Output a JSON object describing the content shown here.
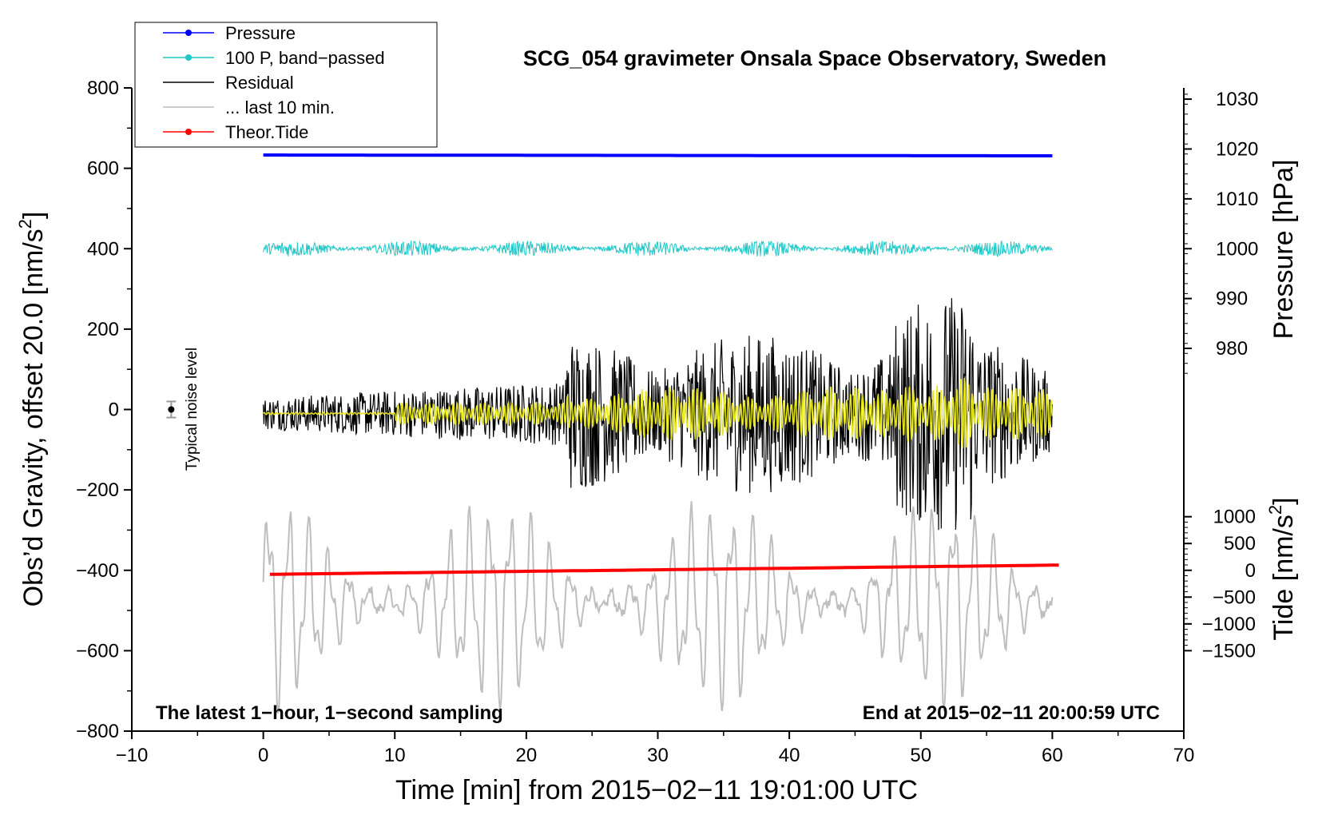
{
  "chart_data": {
    "type": "line",
    "title": "SCG_054 gravimeter Onsala Space Observatory, Sweden",
    "xlabel": "Time [min] from 2015−02−11 19:01:00 UTC",
    "ylabel_left": "Obs’d Gravity, offset 20.0 [nm/s",
    "ylabel_left_sup": "2",
    "ylabel_left_close": "]",
    "ylabel_right_pressure": "Pressure [hPa]",
    "ylabel_right_tide": "Tide [nm/s",
    "ylabel_right_tide_sup": "2",
    "ylabel_right_tide_close": "]",
    "note_left": "The latest 1−hour, 1−second sampling",
    "note_right": "End at 2015−02−11 20:00:59 UTC",
    "noise_label": "Typical noise level",
    "xlim": [
      -10,
      70
    ],
    "ylim_left": [
      -800,
      800
    ],
    "x_ticks": [
      -10,
      0,
      10,
      20,
      30,
      40,
      50,
      60,
      70
    ],
    "x_tick_labels": [
      "−10",
      "0",
      "10",
      "20",
      "30",
      "40",
      "50",
      "60",
      "70"
    ],
    "y_left_ticks": [
      -800,
      -600,
      -400,
      -200,
      0,
      200,
      400,
      600,
      800
    ],
    "y_left_tick_labels": [
      "−800",
      "−600",
      "−400",
      "−200",
      "0",
      "200",
      "400",
      "600",
      "800"
    ],
    "pressure_axis": {
      "ticks": [
        980,
        990,
        1000,
        1010,
        1020,
        1030
      ],
      "tick_labels": [
        "980",
        "990",
        "1000",
        "1010",
        "1020",
        "1030"
      ],
      "gravity_at_1000": 400,
      "gravity_per_hpa": 12.4
    },
    "tide_axis": {
      "ticks": [
        -1500,
        -1000,
        -500,
        0,
        500,
        1000
      ],
      "tick_labels": [
        "−1500",
        "−1000",
        "−500",
        "0",
        "500",
        "1000"
      ],
      "gravity_at_0": -400,
      "gravity_per_unit": 0.1333
    },
    "noise_marker": {
      "x": -7,
      "y": 0,
      "err": 20
    },
    "legend": [
      {
        "label": "Pressure",
        "color": "#0000ff",
        "marker": true
      },
      {
        "label": "100 P, band−passed",
        "color": "#20c8c8",
        "marker": true
      },
      {
        "label": "Residual",
        "color": "#000000",
        "marker": false
      },
      {
        "label": "... last 10 min.",
        "color": "#bebebe",
        "marker": false
      },
      {
        "label": "Theor.Tide",
        "color": "#ff0000",
        "marker": true
      }
    ],
    "series": [
      {
        "name": "Pressure",
        "color": "#0000ff",
        "x_range": [
          0,
          60
        ],
        "start": 633,
        "end": 631,
        "kind": "flat"
      },
      {
        "name": "100 P, band−passed",
        "color": "#20c8c8",
        "x_range": [
          0,
          60
        ],
        "center": 400,
        "amplitude": 20,
        "kind": "noise"
      },
      {
        "name": "Residual",
        "color": "#000000",
        "x_range": [
          0,
          60
        ],
        "center": -10,
        "amplitude_early": 40,
        "amplitude_late": 200,
        "kind": "noise"
      },
      {
        "name": "... last 10 min.",
        "color": "#bebebe",
        "x_range": [
          0,
          60
        ],
        "center": -480,
        "amplitude": 280,
        "kind": "oscillation"
      },
      {
        "name": "smoothed",
        "color": "#e6e619",
        "x_range": [
          0,
          60
        ],
        "center": -10,
        "amplitude": 80,
        "kind": "oscillation"
      },
      {
        "name": "Theor.Tide",
        "color": "#ff0000",
        "x_range": [
          0.5,
          60.5
        ],
        "start": -410,
        "end": -387,
        "kind": "flat"
      }
    ]
  }
}
